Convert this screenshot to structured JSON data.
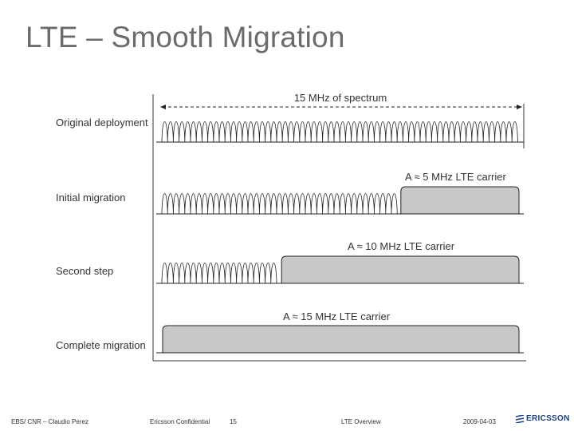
{
  "slide": {
    "title": "LTE – Smooth Migration"
  },
  "diagram": {
    "spectrum_label": "15 MHz of spectrum",
    "rows": [
      {
        "label": "Original deployment",
        "lte_label": "",
        "lte_fraction": 0
      },
      {
        "label": "Initial migration",
        "lte_label": "A ≈ 5 MHz LTE carrier",
        "lte_fraction": 0.333
      },
      {
        "label": "Second step",
        "lte_label": "A ≈ 10 MHz LTE carrier",
        "lte_fraction": 0.667
      },
      {
        "label": "Complete migration",
        "lte_label": "A ≈ 15 MHz LTE carrier",
        "lte_fraction": 1.0
      }
    ],
    "colors": {
      "lte_fill": "#c8c8c8",
      "line": "#222222"
    }
  },
  "footer": {
    "org": "EBS/ CNR – Claudio Perez",
    "confidentiality": "Ericsson Confidential",
    "page": "15",
    "topic": "LTE Overview",
    "date": "2009-04-03",
    "logo_text": "ERICSSON"
  }
}
